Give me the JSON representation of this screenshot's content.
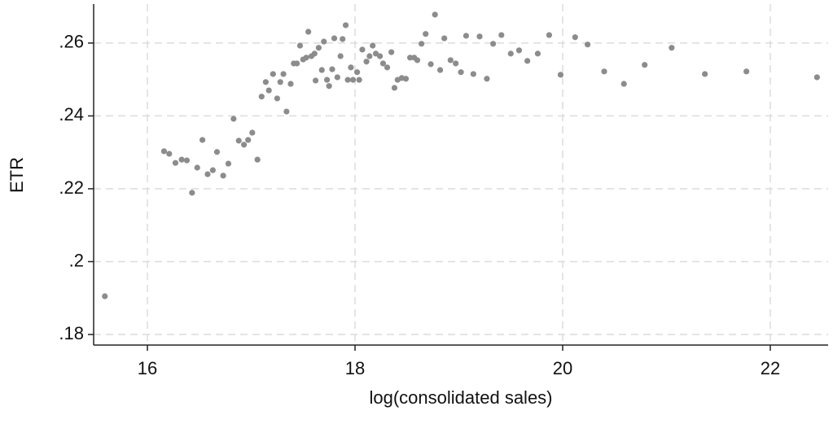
{
  "chart_data": {
    "type": "scatter",
    "x_label": "log(consolidated sales)",
    "y_label": "ETR",
    "color": "#8c8c8c",
    "grid": true,
    "xlim": [
      15.482,
      22.557
    ],
    "ylim": [
      0.1771,
      0.2707
    ],
    "xticks": [
      16,
      18,
      20,
      22
    ],
    "yticks": [
      {
        "value": 0.18,
        "label": ".18"
      },
      {
        "value": 0.2,
        "label": ".2"
      },
      {
        "value": 0.22,
        "label": ".22"
      },
      {
        "value": 0.24,
        "label": ".24"
      },
      {
        "value": 0.26,
        "label": ".26"
      }
    ],
    "x": [
      15.59,
      16.16,
      16.21,
      16.27,
      16.33,
      16.38,
      16.43,
      16.48,
      16.53,
      16.58,
      16.63,
      16.67,
      16.73,
      16.78,
      16.83,
      16.88,
      16.93,
      16.97,
      17.01,
      17.06,
      17.1,
      17.14,
      17.17,
      17.21,
      17.25,
      17.28,
      17.31,
      17.34,
      17.38,
      17.41,
      17.44,
      17.47,
      17.5,
      17.53,
      17.55,
      17.58,
      17.61,
      17.62,
      17.65,
      17.68,
      17.7,
      17.73,
      17.75,
      17.78,
      17.8,
      17.83,
      17.86,
      17.88,
      17.91,
      17.93,
      17.96,
      17.98,
      18.02,
      18.04,
      18.07,
      18.11,
      18.14,
      18.17,
      18.2,
      18.24,
      18.27,
      18.31,
      18.35,
      18.38,
      18.41,
      18.45,
      18.49,
      18.53,
      18.57,
      18.6,
      18.64,
      18.68,
      18.73,
      18.77,
      18.82,
      18.86,
      18.92,
      18.97,
      19.02,
      19.07,
      19.14,
      19.2,
      19.27,
      19.33,
      19.41,
      19.5,
      19.58,
      19.66,
      19.76,
      19.87,
      19.98,
      20.12,
      20.24,
      20.4,
      20.59,
      20.79,
      21.05,
      21.37,
      21.77,
      22.45
    ],
    "values": [
      0.1905,
      0.2303,
      0.2296,
      0.2271,
      0.228,
      0.2278,
      0.2189,
      0.2258,
      0.2334,
      0.224,
      0.2251,
      0.2301,
      0.2236,
      0.2269,
      0.2392,
      0.2332,
      0.2321,
      0.2334,
      0.2354,
      0.228,
      0.2453,
      0.2493,
      0.247,
      0.2515,
      0.2448,
      0.2493,
      0.2515,
      0.2412,
      0.2488,
      0.2544,
      0.2544,
      0.2593,
      0.2555,
      0.256,
      0.2631,
      0.2564,
      0.2571,
      0.2497,
      0.2587,
      0.2526,
      0.2604,
      0.2499,
      0.2482,
      0.2528,
      0.2613,
      0.2506,
      0.2564,
      0.2611,
      0.2649,
      0.2499,
      0.2533,
      0.2499,
      0.252,
      0.2499,
      0.2582,
      0.2549,
      0.2564,
      0.2593,
      0.2571,
      0.2564,
      0.2544,
      0.2533,
      0.2575,
      0.2477,
      0.2499,
      0.2504,
      0.2502,
      0.256,
      0.256,
      0.2553,
      0.2598,
      0.2625,
      0.2542,
      0.2678,
      0.2526,
      0.2613,
      0.2553,
      0.2544,
      0.252,
      0.262,
      0.2515,
      0.2618,
      0.2502,
      0.2598,
      0.2622,
      0.2571,
      0.258,
      0.2551,
      0.2571,
      0.2622,
      0.2513,
      0.2616,
      0.2596,
      0.2522,
      0.2488,
      0.254,
      0.2587,
      0.2515,
      0.2522,
      0.2506
    ]
  }
}
